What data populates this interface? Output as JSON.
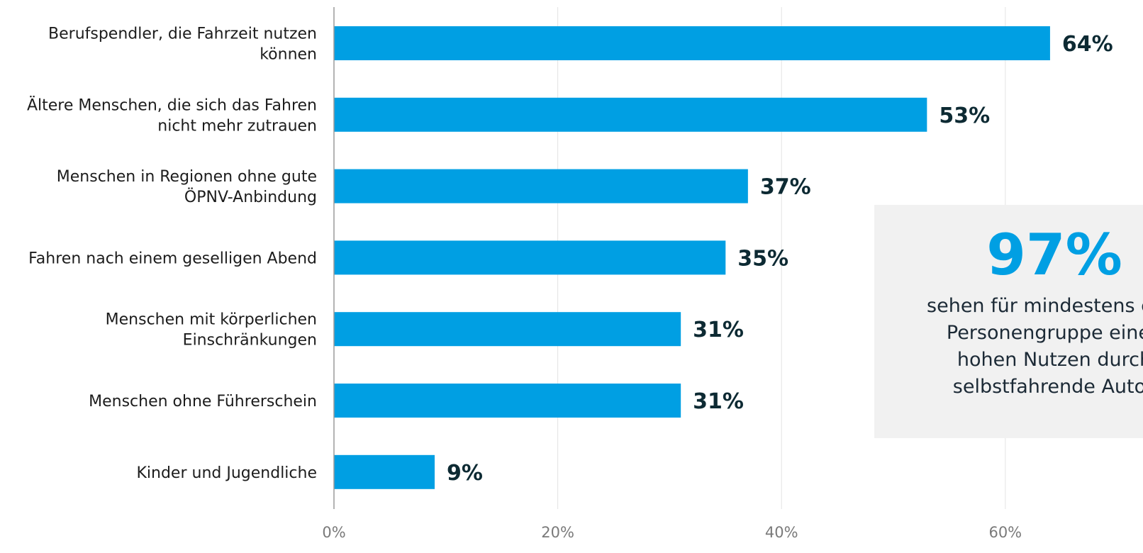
{
  "chart_data": {
    "type": "bar",
    "orientation": "horizontal",
    "categories": [
      [
        "Berufspendler, die Fahrzeit nutzen",
        "können"
      ],
      [
        "Ältere Menschen, die sich das Fahren",
        "nicht mehr zutrauen"
      ],
      [
        "Menschen in Regionen ohne gute",
        "ÖPNV-Anbindung"
      ],
      [
        "Fahren nach einem geselligen Abend"
      ],
      [
        "Menschen mit körperlichen",
        "Einschränkungen"
      ],
      [
        "Menschen ohne Führerschein"
      ],
      [
        "Kinder und Jugendliche"
      ]
    ],
    "values": [
      64,
      53,
      37,
      35,
      31,
      31,
      9
    ],
    "value_labels": [
      "64%",
      "53%",
      "37%",
      "35%",
      "31%",
      "31%",
      "9%"
    ],
    "xlim": [
      0,
      70
    ],
    "xticks": [
      0,
      20,
      40,
      60
    ],
    "xtick_labels": [
      "0%",
      "20%",
      "40%",
      "60%"
    ],
    "grid": true,
    "bar_color": "#009fe3",
    "callout": {
      "value": "97%",
      "value_color": "#009fe3",
      "background": "#f1f1f1",
      "lines": [
        "sehen für mindestens eine",
        "Personengruppe einen",
        "hohen Nutzen durch",
        "selbstfahrende Autos"
      ]
    }
  }
}
